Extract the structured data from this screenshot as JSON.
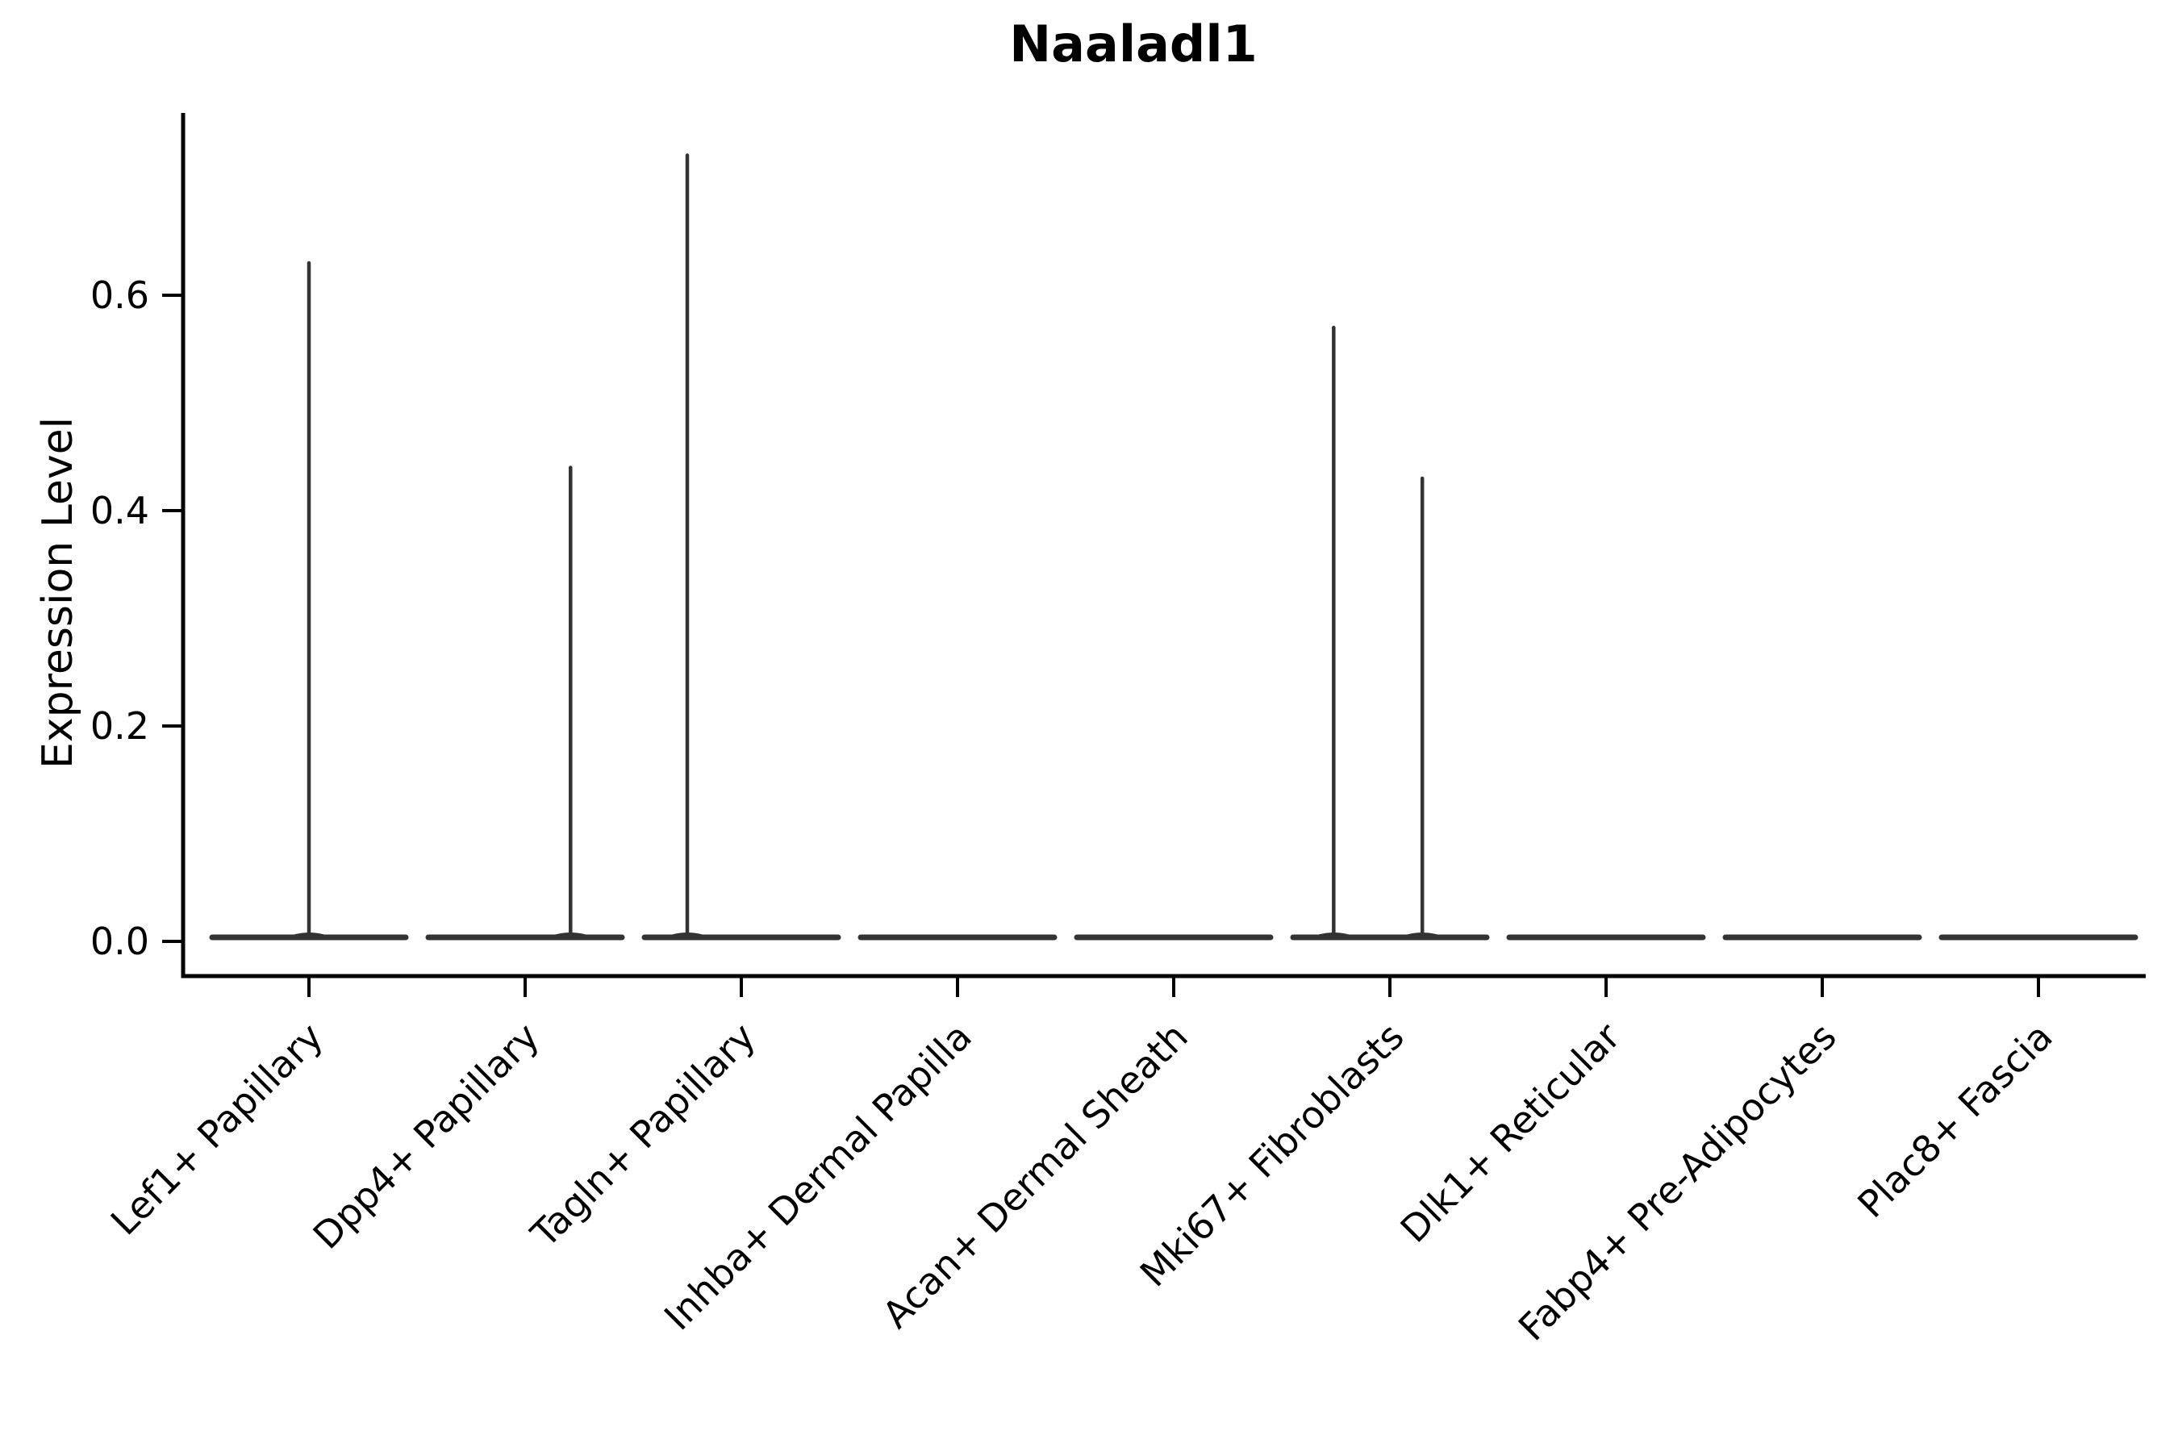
{
  "chart_data": {
    "type": "violin",
    "title": "Naaladl1",
    "xlabel": "",
    "ylabel": "Expression Level",
    "ylim": [
      -0.04,
      0.77
    ],
    "yticks": [
      0.0,
      0.2,
      0.4,
      0.6
    ],
    "ytick_labels": [
      "0.0",
      "0.2",
      "0.4",
      "0.6"
    ],
    "categories": [
      "Lef1+ Papillary",
      "Dpp4+ Papillary",
      "Tagln+ Papillary",
      "Inhba+ Dermal Papilla",
      "Acan+ Dermal Sheath",
      "Mki67+ Fibroblasts",
      "Dlk1+ Reticular",
      "Fabp4+ Pre-Adipocytes",
      "Plac8+ Fascia"
    ],
    "series": [
      {
        "name": "Lef1+ Papillary",
        "base_value": 0.0,
        "max_expression": 0.63,
        "spikes": [
          {
            "value": 0.63,
            "offset_frac": 0.0
          }
        ]
      },
      {
        "name": "Dpp4+ Papillary",
        "base_value": 0.0,
        "max_expression": 0.44,
        "spikes": [
          {
            "value": 0.44,
            "offset_frac": 0.21
          }
        ]
      },
      {
        "name": "Tagln+ Papillary",
        "base_value": 0.0,
        "max_expression": 0.73,
        "spikes": [
          {
            "value": 0.73,
            "offset_frac": -0.25
          }
        ]
      },
      {
        "name": "Inhba+ Dermal Papilla",
        "base_value": 0.0,
        "max_expression": 0.0,
        "spikes": []
      },
      {
        "name": "Acan+ Dermal Sheath",
        "base_value": 0.0,
        "max_expression": 0.0,
        "spikes": []
      },
      {
        "name": "Mki67+ Fibroblasts",
        "base_value": 0.0,
        "max_expression": 0.57,
        "spikes": [
          {
            "value": 0.57,
            "offset_frac": -0.26
          },
          {
            "value": 0.43,
            "offset_frac": 0.15
          }
        ]
      },
      {
        "name": "Dlk1+ Reticular",
        "base_value": 0.0,
        "max_expression": 0.0,
        "spikes": []
      },
      {
        "name": "Fabp4+ Pre-Adipocytes",
        "base_value": 0.0,
        "max_expression": 0.0,
        "spikes": []
      },
      {
        "name": "Plac8+ Fascia",
        "base_value": 0.0,
        "max_expression": 0.0,
        "spikes": []
      }
    ],
    "legend": null,
    "grid": false,
    "style": {
      "violin_color": "#333333",
      "axis_color": "#000000",
      "background": "#ffffff",
      "x_label_rotation_deg": 45
    }
  }
}
